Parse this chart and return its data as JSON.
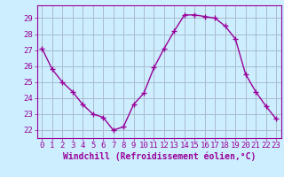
{
  "x": [
    0,
    1,
    2,
    3,
    4,
    5,
    6,
    7,
    8,
    9,
    10,
    11,
    12,
    13,
    14,
    15,
    16,
    17,
    18,
    19,
    20,
    21,
    22,
    23
  ],
  "y": [
    27.1,
    25.8,
    25.0,
    24.4,
    23.6,
    23.0,
    22.8,
    22.0,
    22.2,
    23.6,
    24.3,
    25.9,
    27.1,
    28.2,
    29.2,
    29.2,
    29.1,
    29.0,
    28.5,
    27.7,
    25.5,
    24.4,
    23.5,
    22.7
  ],
  "line_color": "#990099",
  "marker": "+",
  "marker_size": 4,
  "bg_color": "#cceeff",
  "grid_color": "#aabbcc",
  "axis_color": "#990099",
  "tick_color": "#990099",
  "label_color": "#990099",
  "xlabel": "Windchill (Refroidissement éolien,°C)",
  "ylim": [
    21.5,
    29.8
  ],
  "xlim": [
    -0.5,
    23.5
  ],
  "yticks": [
    22,
    23,
    24,
    25,
    26,
    27,
    28,
    29
  ],
  "xticks": [
    0,
    1,
    2,
    3,
    4,
    5,
    6,
    7,
    8,
    9,
    10,
    11,
    12,
    13,
    14,
    15,
    16,
    17,
    18,
    19,
    20,
    21,
    22,
    23
  ],
  "font_size": 6.5,
  "xlabel_fontsize": 7,
  "line_width": 1.0
}
